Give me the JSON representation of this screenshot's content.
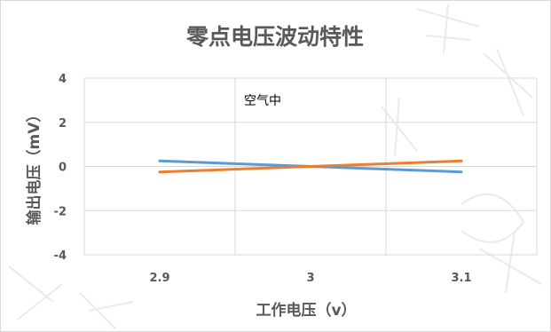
{
  "chart_data": {
    "type": "line",
    "title": "零点电压波动特性",
    "xlabel": "工作电压（v）",
    "ylabel": "输出电压（mV）",
    "categories": [
      "2.9",
      "3",
      "3.1"
    ],
    "ylim": [
      -4,
      4
    ],
    "yticks": [
      4,
      2,
      0,
      -2,
      -4
    ],
    "grid": true,
    "annotation": "空气中",
    "series": [
      {
        "color": "#5b9bd5",
        "values": [
          0.25,
          0.0,
          -0.25
        ]
      },
      {
        "color": "#ed7d31",
        "values": [
          -0.25,
          0.0,
          0.25
        ]
      }
    ]
  }
}
